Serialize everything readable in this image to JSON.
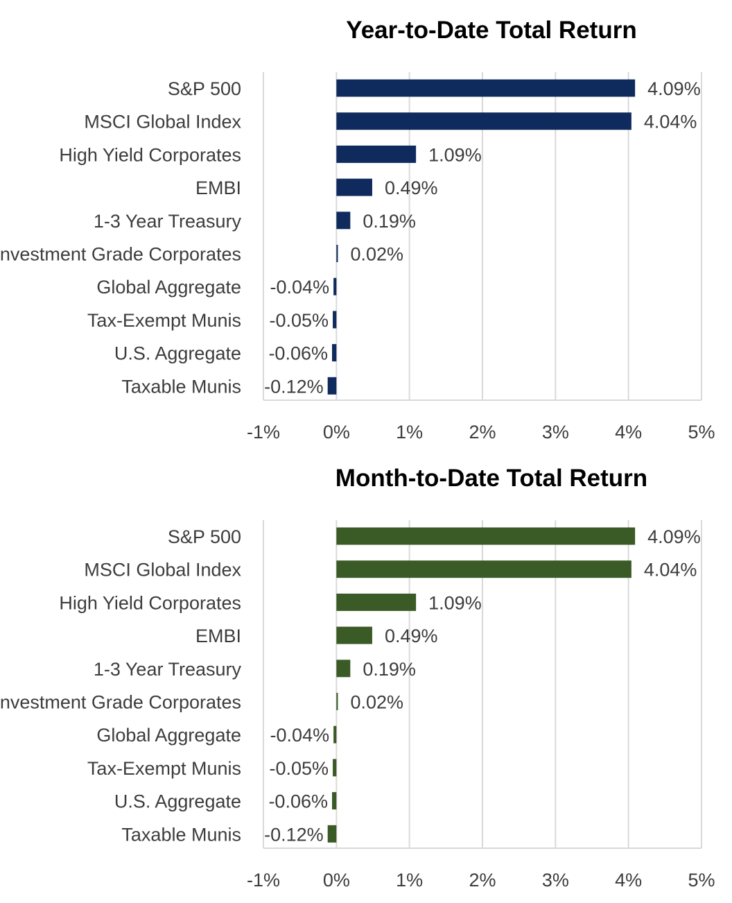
{
  "chart_data": [
    {
      "type": "bar",
      "orientation": "horizontal",
      "title": "Year-to-Date Total Return",
      "categories": [
        "S&P 500",
        "MSCI Global Index",
        "High Yield Corporates",
        "EMBI",
        "1-3 Year Treasury",
        "Investment Grade Corporates",
        "Global Aggregate",
        "Tax-Exempt Munis",
        "U.S. Aggregate",
        "Taxable Munis"
      ],
      "values": [
        4.09,
        4.04,
        1.09,
        0.49,
        0.19,
        0.02,
        -0.04,
        -0.05,
        -0.06,
        -0.12
      ],
      "value_labels": [
        "4.09%",
        "4.04%",
        "1.09%",
        "0.49%",
        "0.19%",
        "0.02%",
        "-0.04%",
        "-0.05%",
        "-0.06%",
        "-0.12%"
      ],
      "xlim": [
        -1,
        5
      ],
      "xticks": [
        "-1%",
        "0%",
        "1%",
        "2%",
        "3%",
        "4%",
        "5%"
      ],
      "grid": true,
      "color": "#0f2a5c"
    },
    {
      "type": "bar",
      "orientation": "horizontal",
      "title": "Month-to-Date Total Return",
      "categories": [
        "S&P 500",
        "MSCI Global Index",
        "High Yield Corporates",
        "EMBI",
        "1-3 Year Treasury",
        "Investment Grade Corporates",
        "Global Aggregate",
        "Tax-Exempt Munis",
        "U.S. Aggregate",
        "Taxable Munis"
      ],
      "values": [
        4.09,
        4.04,
        1.09,
        0.49,
        0.19,
        0.02,
        -0.04,
        -0.05,
        -0.06,
        -0.12
      ],
      "value_labels": [
        "4.09%",
        "4.04%",
        "1.09%",
        "0.49%",
        "0.19%",
        "0.02%",
        "-0.04%",
        "-0.05%",
        "-0.06%",
        "-0.12%"
      ],
      "xlim": [
        -1,
        5
      ],
      "xticks": [
        "-1%",
        "0%",
        "1%",
        "2%",
        "3%",
        "4%",
        "5%"
      ],
      "grid": true,
      "color": "#3a5a26"
    }
  ]
}
